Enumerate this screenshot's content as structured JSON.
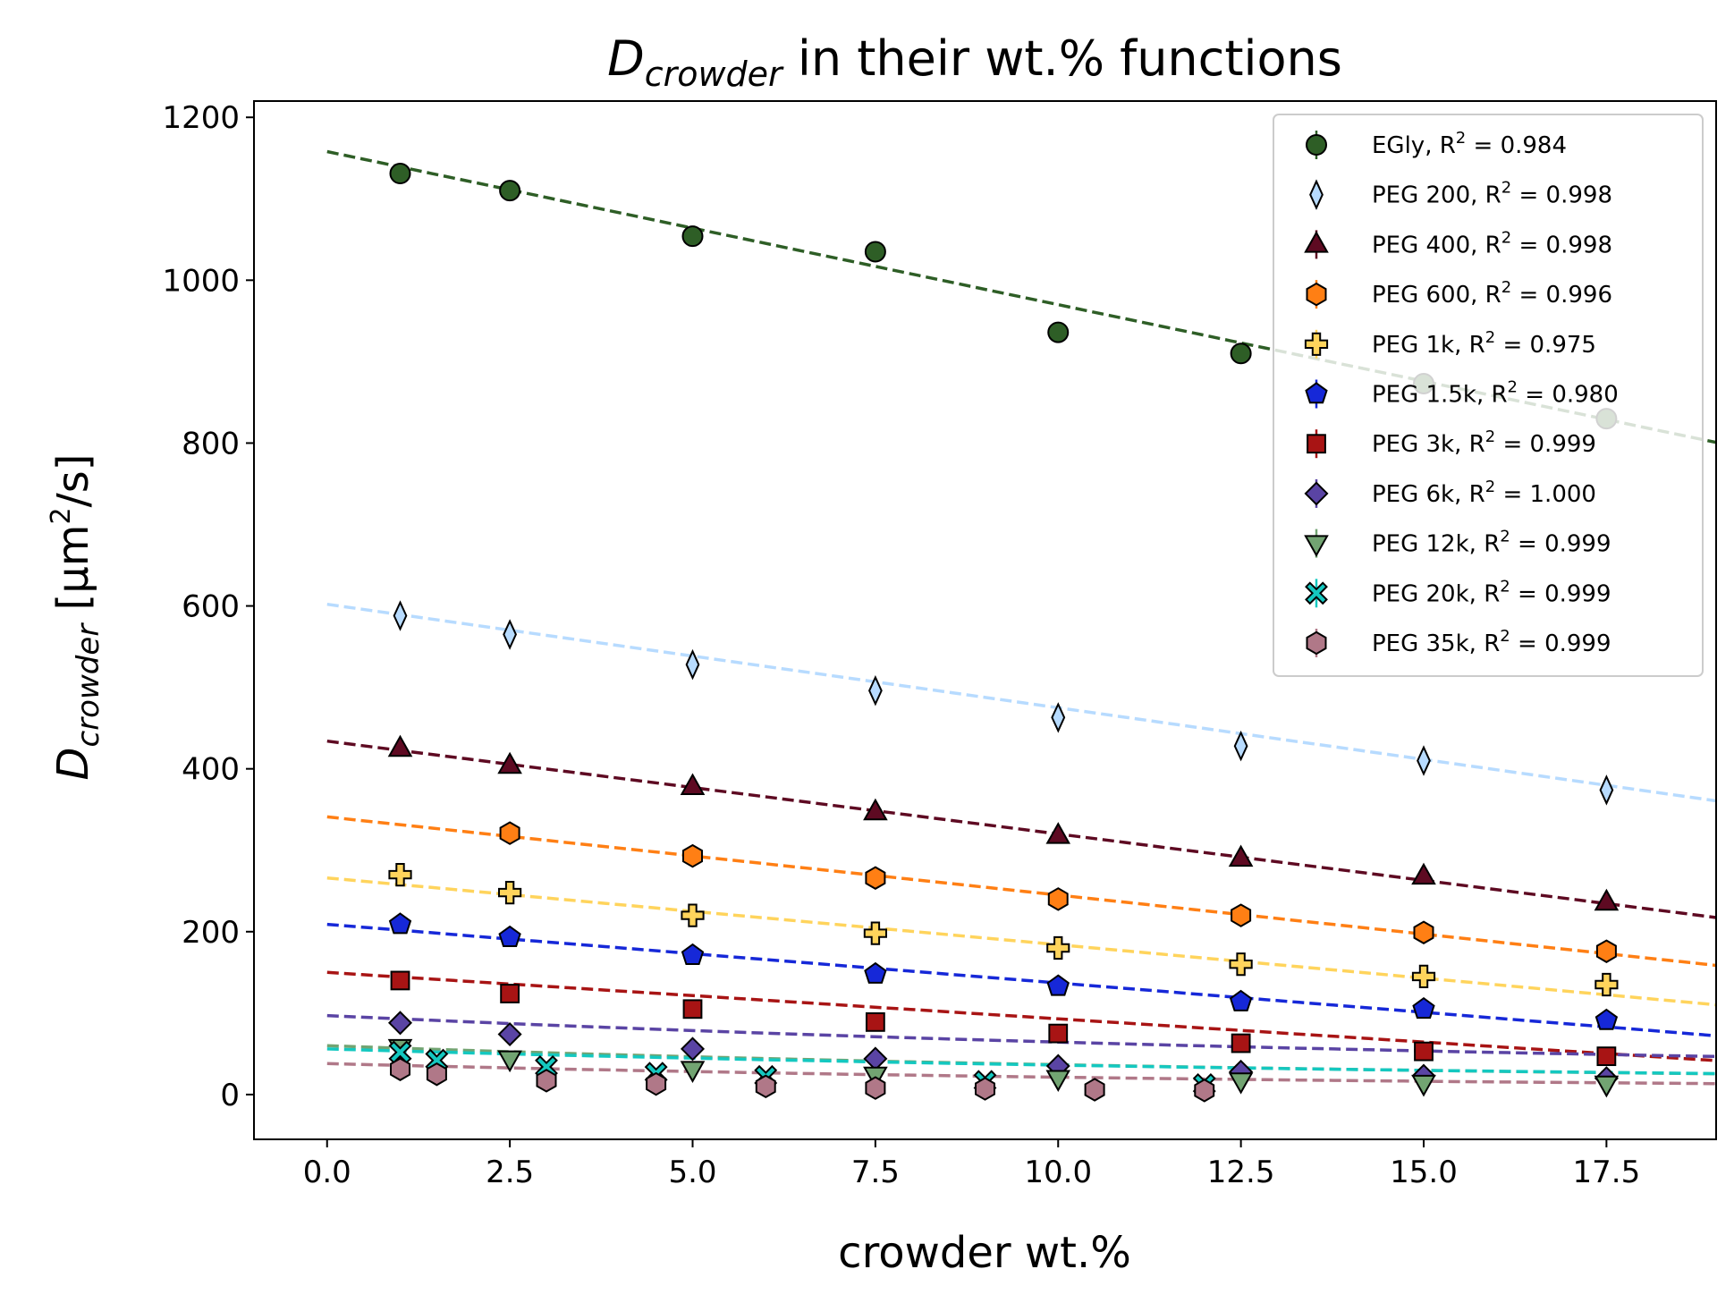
{
  "chart_data": {
    "type": "scatter",
    "title": {
      "var": "D",
      "sub": "crowder",
      "rest": " in their wt.% functions"
    },
    "xlabel": "crowder wt.%",
    "ylabel": {
      "var": "D",
      "sub": "crowder",
      "unit_pre": " [μm",
      "unit_sup": "2",
      "unit_post": "/s]"
    },
    "xlim": [
      -1.0,
      19.0
    ],
    "ylim": [
      -55,
      1220
    ],
    "x_ticks": [
      "0.0",
      "2.5",
      "5.0",
      "7.5",
      "10.0",
      "12.5",
      "15.0",
      "17.5"
    ],
    "y_ticks": [
      "0",
      "200",
      "400",
      "600",
      "800",
      "1000",
      "1200"
    ],
    "grid": false,
    "legend_position": "top-right",
    "series": [
      {
        "name": "EGly",
        "r2": "0.984",
        "color": "#2e5e26",
        "marker": "circle",
        "x": [
          1,
          2.5,
          5,
          7.5,
          10,
          12.5,
          15,
          17.5
        ],
        "y": [
          1131,
          1110,
          1054,
          1035,
          936,
          910,
          873,
          830
        ],
        "fit": [
          1158,
          -18.8
        ]
      },
      {
        "name": "PEG 200",
        "r2": "0.998",
        "color": "#b7dbff",
        "marker": "thin-diamond",
        "x": [
          1,
          2.5,
          5,
          7.5,
          10,
          12.5,
          15,
          17.5
        ],
        "y": [
          588,
          565,
          528,
          496,
          463,
          428,
          410,
          374
        ],
        "fit": [
          602,
          -12.7
        ]
      },
      {
        "name": "PEG 400",
        "r2": "0.998",
        "color": "#5e0a22",
        "marker": "triangle-up",
        "x": [
          1,
          2.5,
          5,
          7.5,
          10,
          12.5,
          15,
          17.5
        ],
        "y": [
          425,
          404,
          378,
          347,
          318,
          290,
          268,
          236
        ],
        "fit": [
          434,
          -11.4
        ]
      },
      {
        "name": "PEG 600",
        "r2": "0.996",
        "color": "#ff7f14",
        "marker": "hexagon",
        "x": [
          2.5,
          5,
          7.5,
          10,
          12.5,
          15,
          17.5
        ],
        "y": [
          321,
          293,
          266,
          240,
          220,
          199,
          176
        ],
        "fit": [
          341,
          -9.6
        ]
      },
      {
        "name": "PEG 1k",
        "r2": "0.975",
        "color": "#ffd45c",
        "marker": "plus-filled",
        "x": [
          1,
          2.5,
          5,
          7.5,
          10,
          12.5,
          15,
          17.5
        ],
        "y": [
          270,
          248,
          220,
          198,
          180,
          160,
          145,
          135
        ],
        "fit": [
          266,
          -8.2
        ]
      },
      {
        "name": "PEG 1.5k",
        "r2": "0.980",
        "color": "#1628d8",
        "marker": "pentagon",
        "x": [
          1,
          2.5,
          5,
          7.5,
          10,
          12.5,
          15,
          17.5
        ],
        "y": [
          209,
          193,
          171,
          148,
          133,
          114,
          105,
          91
        ],
        "fit": [
          209,
          -7.2
        ]
      },
      {
        "name": "PEG 3k",
        "r2": "0.999",
        "color": "#a81414",
        "marker": "square",
        "x": [
          1,
          2.5,
          5,
          7.5,
          10,
          12.5,
          15,
          17.5
        ],
        "y": [
          140,
          124,
          105,
          89,
          75,
          63,
          53,
          47
        ],
        "fit": [
          150,
          -5.7
        ]
      },
      {
        "name": "PEG 6k",
        "r2": "1.000",
        "color": "#5a44a4",
        "marker": "diamond",
        "x": [
          1,
          2.5,
          5,
          7.5,
          10,
          12.5,
          15,
          17.5
        ],
        "y": [
          88,
          74,
          56,
          44,
          35,
          28,
          23,
          20
        ],
        "fit": [
          97,
          -4.2
        ]
      },
      {
        "name": "PEG 12k",
        "r2": "0.999",
        "color": "#72a472",
        "marker": "triangle-down",
        "x": [
          1,
          2.5,
          5,
          7.5,
          10,
          12.5,
          15,
          17.5
        ],
        "y": [
          58,
          44,
          31,
          24,
          20,
          17,
          14,
          13
        ],
        "fit": [
          60,
          -3.2
        ]
      },
      {
        "name": "PEG 20k",
        "r2": "0.999",
        "color": "#14c8c0",
        "marker": "x-filled",
        "x": [
          1,
          1.5,
          3,
          4.5,
          6,
          9,
          12
        ],
        "y": [
          52,
          42,
          34,
          26,
          22,
          16,
          12
        ],
        "fit": [
          56,
          -2.6
        ]
      },
      {
        "name": "PEG 35k",
        "r2": "0.999",
        "color": "#b07888",
        "marker": "hexagon",
        "x": [
          1,
          1.5,
          3,
          4.5,
          6,
          7.5,
          9,
          10.5,
          12
        ],
        "y": [
          31,
          25,
          17,
          13,
          10,
          8,
          7,
          6,
          5
        ],
        "fit": [
          38,
          -2.3
        ]
      }
    ]
  }
}
